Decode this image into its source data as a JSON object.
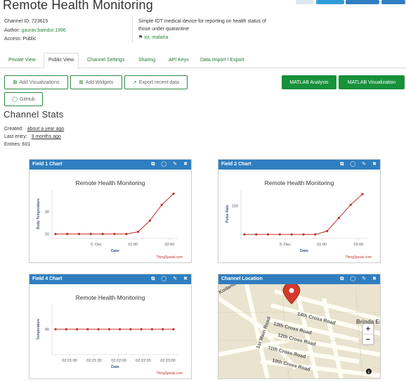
{
  "header": {
    "title": "Remote Health Monitoring"
  },
  "meta": {
    "channel_id": "Channel ID: 723615",
    "author_label": "Author: ",
    "author": "gaurav.baindur.1996",
    "access": "Access: Public",
    "description": "Simple IOT medical device for reporting on health status of those under quarantine",
    "tags": "iot, malaria"
  },
  "tabs": [
    "Private View",
    "Public View",
    "Channel Settings",
    "Sharing",
    "API Keys",
    "Data Import / Export"
  ],
  "toolbar": {
    "add_visualizations": "Add Visualizations",
    "add_widgets": "Add Widgets",
    "export_recent": "Export recent data",
    "github": "GitHub",
    "matlab_analysis": "MATLAB Analysis",
    "matlab_visualization": "MATLAB Visualization"
  },
  "stats": {
    "title": "Channel Stats",
    "created_label": "Created:",
    "created_value": "about a year ago",
    "last_entry_label": "Last entry:",
    "last_entry_value": "3 months ago",
    "entries_label": "Entries: 601"
  },
  "panels": {
    "field1": {
      "title": "Field 1 Chart"
    },
    "field2": {
      "title": "Field 2 Chart"
    },
    "field4": {
      "title": "Field 4 Chart"
    },
    "location": {
      "title": "Channel Location"
    }
  },
  "colors": {
    "header_blue": "#2f7ec0",
    "brand_green": "#17913a",
    "line_red": "#c0302a"
  },
  "chart_data": [
    {
      "type": "line",
      "title": "Remote Health Monitoring",
      "xlabel": "Date",
      "ylabel": "Body Temperature",
      "credit": "ThingSpeak.com",
      "x_ticks": [
        "5. Dec",
        "01:00",
        "02:00"
      ],
      "y_ticks": [
        20,
        30
      ],
      "ylim": [
        18,
        40
      ],
      "series": [
        {
          "values": [
            20,
            20,
            20,
            20,
            20,
            20,
            20,
            21,
            26,
            33,
            38
          ]
        }
      ]
    },
    {
      "type": "line",
      "title": "Remote Health Monitoring",
      "xlabel": "Date",
      "ylabel": "Pulse Rate",
      "credit": "ThingSpeak.com",
      "x_ticks": [
        "5. Dec",
        "01:00",
        "02:00"
      ],
      "y_ticks": [
        150
      ],
      "ylim": [
        70,
        190
      ],
      "series": [
        {
          "values": [
            80,
            80,
            80,
            80,
            80,
            80,
            80,
            88,
            120,
            152,
            178
          ]
        }
      ]
    },
    {
      "type": "line",
      "title": "Remote Health Monitoring",
      "xlabel": "Date",
      "ylabel": "Temperature",
      "credit": "ThingSpeak.com",
      "x_ticks": [
        "02:21:00",
        "02:21:30",
        "02:22:00",
        "02:22:30",
        "02:23:00"
      ],
      "y_ticks": [
        40
      ],
      "ylim": [
        0,
        80
      ],
      "series": [
        {
          "values": [
            40,
            40,
            40,
            40,
            40,
            40,
            40,
            40,
            40,
            40,
            40,
            40
          ]
        }
      ]
    }
  ],
  "map": {
    "labels": [
      "Kodandapura",
      "14th Cross Road",
      "13th Cross Road",
      "12th Cross Road",
      "11th Cross Road",
      "10th Cross Road",
      "1st Main Road",
      "Brinda Esta"
    ],
    "zoom_in": "+",
    "zoom_out": "−",
    "info": "i"
  }
}
